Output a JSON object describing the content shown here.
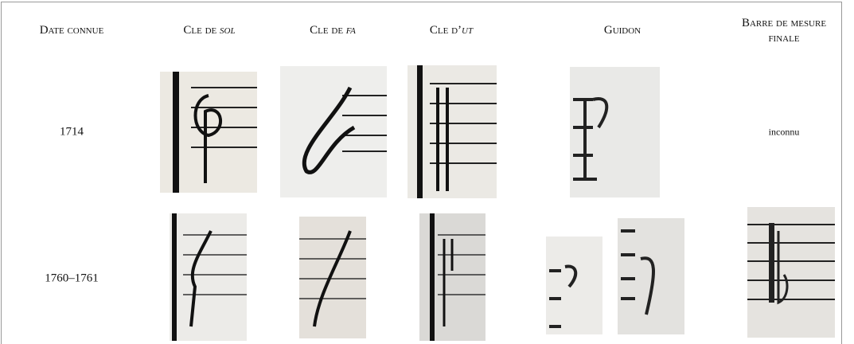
{
  "table": {
    "header": [
      {
        "text": "Date connue"
      },
      {
        "text": "Cle de ",
        "em": "sol"
      },
      {
        "text": "Cle de ",
        "em": "fa"
      },
      {
        "text": "Cle d’",
        "em": "ut"
      },
      {
        "text": "Guidon"
      },
      {
        "text": "Barre de mesure finale"
      }
    ],
    "rows": [
      {
        "date": "1714",
        "final_bar": "inconnu"
      },
      {
        "date": "1760–1761"
      }
    ]
  }
}
